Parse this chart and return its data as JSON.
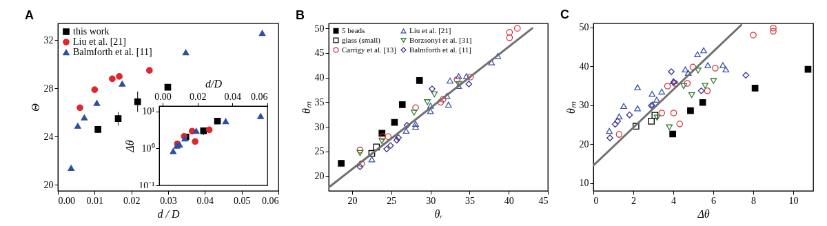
{
  "chart_data": [
    {
      "type": "scatter",
      "title": "A",
      "xlabel": "d / D",
      "ylabel": "Θ",
      "xlim": [
        0,
        0.06
      ],
      "xticks": [
        {
          "value": 0,
          "label": "0.00"
        },
        {
          "value": 0.01,
          "label": "0.01"
        },
        {
          "value": 0.02,
          "label": "0.02"
        },
        {
          "value": 0.03,
          "label": "0.03"
        },
        {
          "value": 0.04,
          "label": "0.04"
        },
        {
          "value": 0.05,
          "label": "0.05"
        },
        {
          "value": 0.06,
          "label": "0.06"
        }
      ],
      "ylim": [
        19.5,
        33.4
      ],
      "yticks": [
        20,
        24,
        28,
        32
      ],
      "legend": "top left",
      "series": [
        {
          "name": "this work",
          "color": "#000000",
          "marker": "square",
          "x": [
            0.0109,
            0.0164,
            0.0217,
            0.0299
          ],
          "values": [
            24.6,
            25.5,
            26.9,
            28.1
          ],
          "errors": [
            0.3,
            0.55,
            0.85,
            null
          ]
        },
        {
          "name": "Liu et al. [21]",
          "color": "#e0262a",
          "marker": "circle",
          "x": [
            0.006,
            0.01,
            0.0148,
            0.0167,
            0.0249
          ],
          "values": [
            26.4,
            27.9,
            28.8,
            29.0,
            29.5
          ]
        },
        {
          "name": "Balmforth et al. [11]",
          "color": "#2b4fa3",
          "marker": "triangle",
          "x": [
            0.0036,
            0.0054,
            0.0072,
            0.0106,
            0.0175,
            0.0348,
            0.0556
          ],
          "values": [
            21.4,
            24.9,
            25.6,
            26.8,
            28.4,
            31.0,
            32.6
          ]
        }
      ]
    },
    {
      "type": "scatter",
      "xlabel": "d/D",
      "ylabel": "Δθ",
      "xlim": [
        -0.002,
        0.06
      ],
      "xticks": [
        {
          "value": 0,
          "label": "0.00"
        },
        {
          "value": 0.02,
          "label": "0.02"
        },
        {
          "value": 0.04,
          "label": "0.04"
        },
        {
          "value": 0.06,
          "label": "0.06"
        }
      ],
      "ylim": [
        0.1,
        14
      ],
      "yticks": [
        {
          "value": 0.1,
          "label": "10⁻¹"
        },
        {
          "value": 1,
          "label": "10⁰"
        },
        {
          "value": 10,
          "label": "10¹"
        }
      ],
      "log": "y",
      "series": [
        {
          "color": "#000000",
          "marker": "square",
          "x": [
            0.0133,
            0.0234,
            0.0314
          ],
          "values": [
            2.05,
            3.0,
            5.5
          ],
          "errors": [
            null,
            [
              2.3,
              3.6
            ],
            null
          ]
        },
        {
          "color": "#e0262a",
          "marker": "circle",
          "x": [
            0.0084,
            0.0123,
            0.0169,
            0.0186,
            0.0267
          ],
          "values": [
            1.33,
            2.14,
            2.94,
            1.54,
            3.2
          ]
        },
        {
          "color": "#2b4fa3",
          "marker": "triangle",
          "x": [
            0.006,
            0.0081,
            0.0097,
            0.0127,
            0.0192,
            0.0361,
            0.0561
          ],
          "values": [
            0.84,
            1.19,
            1.26,
            1.86,
            2.98,
            5.46,
            7.5
          ]
        }
      ]
    },
    {
      "type": "scatter",
      "title": "B",
      "xlabel": "θᵣ",
      "ylabel": "θₘ",
      "xlim": [
        17,
        45
      ],
      "xticks": [
        20,
        25,
        30,
        35,
        40,
        45
      ],
      "ylim": [
        17,
        51
      ],
      "yticks": [
        20,
        25,
        30,
        35,
        40,
        45,
        50
      ],
      "legend": "top left",
      "series": [
        {
          "name": "5 beads",
          "color": "#000000",
          "marker": "square",
          "x": [
            18.6,
            23.8,
            25.4,
            26.4,
            28.6
          ],
          "values": [
            22.6,
            28.7,
            30.9,
            34.5,
            39.4
          ]
        },
        {
          "name": "glass (small)",
          "color": "#000000",
          "marker": "square-open",
          "x": [
            22.5,
            23.1
          ],
          "values": [
            24.6,
            25.9
          ]
        },
        {
          "name": "Carrigy et al. [13]",
          "color": "#d9363e",
          "marker": "circle-open",
          "x": [
            21.0,
            21.2,
            23.9,
            24.6,
            28.1,
            31.3,
            31.6,
            33.4,
            35.1,
            40.1,
            40.1,
            41.1
          ],
          "values": [
            25.3,
            22.5,
            28.0,
            28.0,
            33.9,
            35.0,
            35.6,
            39.6,
            40.1,
            49.2,
            48.1,
            50.0
          ]
        },
        {
          "name": "Liu et al. [21]",
          "color": "#3a55a8",
          "marker": "triangle-open",
          "x": [
            22.5,
            26.9,
            28.1,
            28.1,
            30.0,
            30.0,
            32.3,
            32.1,
            32.5,
            33.6,
            34.6,
            33.6,
            37.8,
            38.6
          ],
          "values": [
            23.4,
            29.2,
            30.0,
            30.6,
            34.3,
            33.2,
            34.5,
            36.3,
            39.4,
            40.3,
            40.3,
            38.3,
            43.1,
            44.4
          ]
        },
        {
          "name": "Borzsonyi et al. [31]",
          "color": "#2e7d32",
          "marker": "triangle-down-open",
          "x": [
            21.0,
            23.8,
            27.9,
            29.6,
            30.5,
            33.6
          ],
          "values": [
            24.7,
            27.1,
            32.9,
            35.0,
            36.6,
            38.7
          ]
        },
        {
          "name": "Balmforth et al. [11]",
          "color": "#3b2f8a",
          "marker": "diamond-open",
          "x": [
            21.0,
            24.4,
            24.9,
            25.7,
            25.9,
            27.0,
            30.2,
            34.9
          ],
          "values": [
            21.9,
            25.5,
            26.2,
            27.3,
            27.8,
            30.3,
            37.7,
            38.7
          ]
        },
        {
          "type": "line",
          "color": "#707070",
          "x": [
            17,
            43.0
          ],
          "values": [
            17.7,
            50.0
          ]
        }
      ]
    },
    {
      "type": "scatter",
      "title": "C",
      "xlabel": "Δθ",
      "ylabel": "θₘ",
      "xlim": [
        0,
        11
      ],
      "xticks": [
        0,
        2,
        4,
        6,
        8,
        10
      ],
      "ylim": [
        8,
        51
      ],
      "yticks": [
        10,
        20,
        30,
        40,
        50
      ],
      "series": [
        {
          "color": "#000000",
          "marker": "square",
          "x": [
            3.97,
            4.86,
            5.47,
            8.09,
            10.74
          ],
          "values": [
            22.6,
            28.6,
            30.7,
            34.4,
            39.2
          ]
        },
        {
          "color": "#000000",
          "marker": "square-open",
          "x": [
            2.13,
            2.9,
            3.08
          ],
          "values": [
            24.6,
            25.9,
            27.4
          ]
        },
        {
          "color": "#d9363e",
          "marker": "circle-open",
          "x": [
            1.29,
            3.42,
            4.02,
            4.32,
            3.71,
            4.09,
            4.7,
            4.98,
            5.7,
            6.1,
            8.0,
            9.0,
            9.0
          ],
          "values": [
            22.5,
            28.0,
            28.0,
            25.2,
            34.9,
            35.6,
            35.6,
            39.8,
            33.7,
            39.5,
            48.0,
            49.8,
            49.0
          ]
        },
        {
          "color": "#3a55a8",
          "marker": "triangle-open",
          "x": [
            0.8,
            1.29,
            1.52,
            2.21,
            2.21,
            2.94,
            2.96,
            3.17,
            3.42,
            4.0,
            4.6,
            4.75,
            5.21,
            5.52,
            5.73,
            6.48,
            6.63
          ],
          "values": [
            23.4,
            27.1,
            29.8,
            29.2,
            34.6,
            32.9,
            30.2,
            31.4,
            33.5,
            36.2,
            39.2,
            38.3,
            43.1,
            44.1,
            40.3,
            40.3,
            39.2
          ]
        },
        {
          "color": "#2e7d32",
          "marker": "triangle-down-open",
          "x": [
            3.19,
            3.8,
            4.52,
            4.92,
            5.24,
            5.59,
            6.01
          ],
          "values": [
            26.8,
            24.3,
            34.9,
            32.6,
            38.9,
            35.0,
            36.2
          ]
        },
        {
          "color": "#3b2f8a",
          "marker": "diamond-open",
          "x": [
            0.83,
            1.09,
            1.21,
            1.81,
            2.9,
            3.9,
            4.03,
            5.4,
            7.63
          ],
          "values": [
            21.6,
            25.1,
            25.9,
            27.5,
            29.9,
            38.6,
            35.9,
            33.7,
            37.7
          ]
        },
        {
          "type": "line",
          "color": "#707070",
          "x": [
            0,
            7.4
          ],
          "values": [
            14.5,
            50.6
          ]
        }
      ]
    }
  ]
}
